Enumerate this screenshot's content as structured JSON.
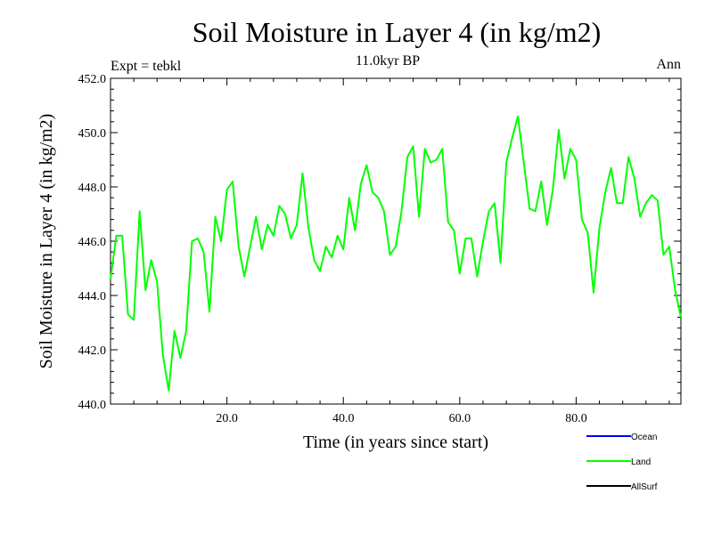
{
  "title": "Soil Moisture in Layer 4 (in kg/m2)",
  "subtitle_left": "Expt = tebkl",
  "subtitle_center": "11.0kyr BP",
  "subtitle_right": "Ann",
  "colors": {
    "ocean": "#0000ff",
    "land": "#00ff00",
    "allsurf": "#000000",
    "axis": "#000000"
  },
  "chart_data": {
    "type": "line",
    "title": "Soil Moisture in Layer 4 (in kg/m2)",
    "xlabel": "Time (in years since start)",
    "ylabel": "Soil Moisture in Layer 4 (in kg/m2)",
    "xlim": [
      0,
      98
    ],
    "ylim": [
      440,
      452
    ],
    "xticks": [
      20,
      40,
      60,
      80
    ],
    "xtick_labels": [
      "20.0",
      "40.0",
      "60.0",
      "80.0"
    ],
    "yticks": [
      440,
      442,
      444,
      446,
      448,
      450,
      452
    ],
    "ytick_labels": [
      "440.0",
      "442.0",
      "444.0",
      "446.0",
      "448.0",
      "450.0",
      "452.0"
    ],
    "legend": [
      {
        "name": "Ocean",
        "color": "#0000ff"
      },
      {
        "name": "Land",
        "color": "#00ff00"
      },
      {
        "name": "AllSurf",
        "color": "#000000"
      }
    ],
    "series": [
      {
        "name": "Land",
        "color": "#00ff00",
        "x": [
          0,
          1,
          2,
          3,
          4,
          5,
          6,
          7,
          8,
          9,
          10,
          11,
          12,
          13,
          14,
          15,
          16,
          17,
          18,
          19,
          20,
          21,
          22,
          23,
          24,
          25,
          26,
          27,
          28,
          29,
          30,
          31,
          32,
          33,
          34,
          35,
          36,
          37,
          38,
          39,
          40,
          41,
          42,
          43,
          44,
          45,
          46,
          47,
          48,
          49,
          50,
          51,
          52,
          53,
          54,
          55,
          56,
          57,
          58,
          59,
          60,
          61,
          62,
          63,
          64,
          65,
          66,
          67,
          68,
          69,
          70,
          71,
          72,
          73,
          74,
          75,
          76,
          77,
          78,
          79,
          80,
          81,
          82,
          83,
          84,
          85,
          86,
          87,
          88,
          89,
          90,
          91,
          92,
          93,
          94,
          95,
          96,
          97,
          98
        ],
        "values": [
          444.6,
          446.2,
          446.2,
          443.3,
          443.1,
          447.1,
          444.2,
          445.3,
          444.5,
          441.8,
          440.5,
          442.7,
          441.7,
          442.7,
          446.0,
          446.1,
          445.6,
          443.4,
          446.9,
          446.0,
          447.9,
          448.2,
          445.8,
          444.7,
          445.8,
          446.9,
          445.7,
          446.6,
          446.2,
          447.3,
          447.0,
          446.1,
          446.6,
          448.5,
          446.5,
          445.3,
          444.9,
          445.8,
          445.4,
          446.2,
          445.7,
          447.6,
          446.4,
          448.1,
          448.8,
          447.8,
          447.6,
          447.1,
          445.5,
          445.8,
          447.1,
          449.1,
          449.5,
          446.9,
          449.4,
          448.9,
          449.0,
          449.4,
          446.7,
          446.4,
          444.8,
          446.1,
          446.1,
          444.7,
          446.0,
          447.1,
          447.4,
          445.2,
          448.9,
          449.8,
          450.6,
          448.9,
          447.2,
          447.1,
          448.2,
          446.6,
          447.9,
          450.1,
          448.3,
          449.4,
          449.0,
          446.8,
          446.3,
          444.1,
          446.5,
          447.8,
          448.7,
          447.4,
          447.4,
          449.1,
          448.3,
          446.9,
          447.4,
          447.7,
          447.5,
          445.5,
          445.8,
          444.2,
          443.2
        ]
      }
    ]
  }
}
